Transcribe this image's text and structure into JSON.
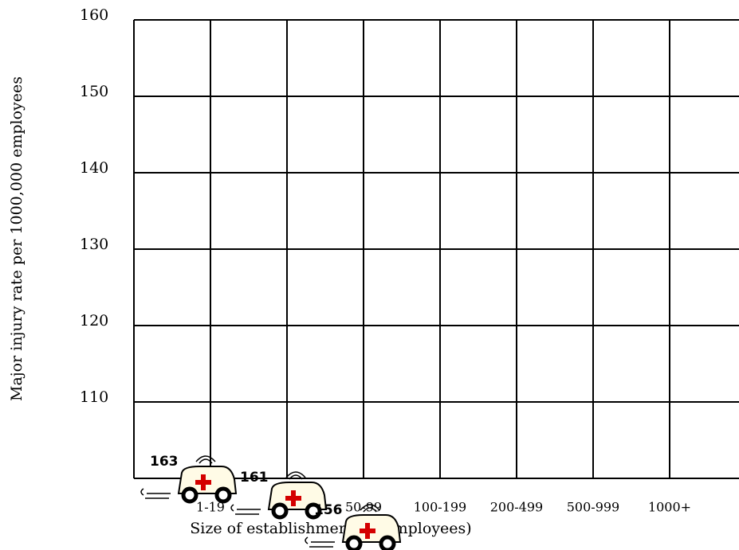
{
  "chart_data": {
    "type": "pictogram",
    "y_label": "Major injury rate per 1000,000 employees",
    "x_label": "Size of establishment (in employees)",
    "categories": [
      "1-19",
      null,
      "50-99",
      "100-199",
      "200-499",
      "500-999",
      "1000+"
    ],
    "values": [
      163,
      161,
      156,
      null,
      null,
      null,
      null
    ],
    "ylim": [
      100,
      160
    ],
    "yticks": [
      110,
      120,
      130,
      140,
      150,
      160
    ],
    "grid": true
  }
}
